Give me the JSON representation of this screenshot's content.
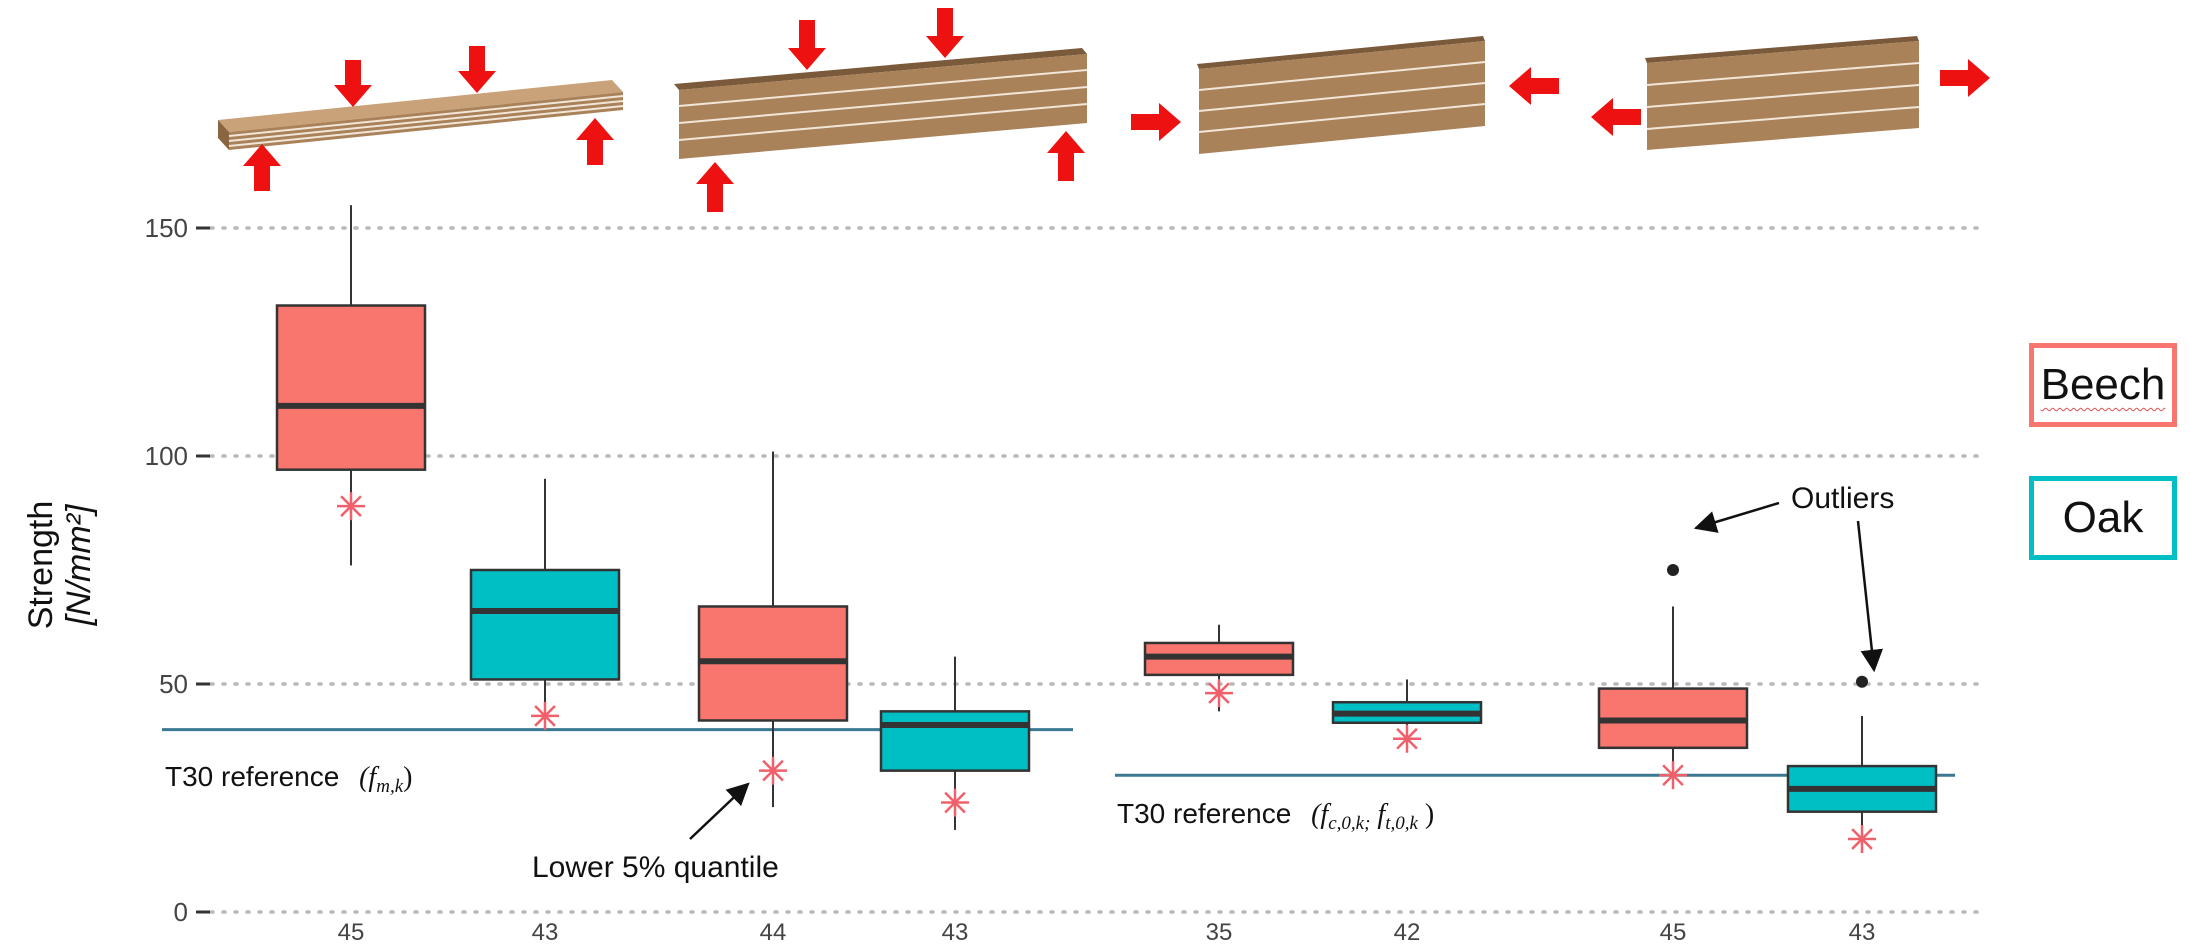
{
  "chart_data": {
    "type": "box",
    "ylabel": "Strength",
    "ylabel_unit": "[N/mm²]",
    "ylim": [
      0,
      160
    ],
    "yticks": [
      0,
      50,
      100,
      150
    ],
    "grid": "horizontal dotted",
    "groups": [
      {
        "name": "bending",
        "reference_label": "T30 reference",
        "reference_symbol": "(f",
        "reference_subscript": "m,k",
        "reference_symbol_close": ")",
        "reference_value": 40,
        "boxes": [
          {
            "series": "Beech",
            "n": "45",
            "min": 76,
            "q1": 97,
            "median": 111,
            "q3": 133,
            "max": 155,
            "lower_5pct": 89
          },
          {
            "series": "Oak",
            "n": "43",
            "min": 44,
            "q1": 51,
            "median": 66,
            "q3": 75,
            "max": 95,
            "lower_5pct": 43
          }
        ]
      },
      {
        "name": "bending-edgewise",
        "boxes": [
          {
            "series": "Beech",
            "n": "44",
            "min": 23,
            "q1": 42,
            "median": 55,
            "q3": 67,
            "max": 101,
            "lower_5pct": 31
          },
          {
            "series": "Oak",
            "n": "43",
            "min": 18,
            "q1": 31,
            "median": 41,
            "q3": 44,
            "max": 56,
            "lower_5pct": 24
          }
        ]
      },
      {
        "name": "compression",
        "reference_label": "T30 reference",
        "reference_symbol": "(f",
        "reference_subscript_1": "c,0,k;",
        "reference_symbol_2": " f",
        "reference_subscript_2": "t,0,k",
        "reference_symbol_close": " )",
        "reference_value": 30,
        "boxes": [
          {
            "series": "Beech",
            "n": "35",
            "min": 44,
            "q1": 52,
            "median": 56,
            "q3": 59,
            "max": 63,
            "lower_5pct": 48
          },
          {
            "series": "Oak",
            "n": "42",
            "min": 40,
            "q1": 41.5,
            "median": 43.5,
            "q3": 46,
            "max": 51,
            "lower_5pct": 38
          }
        ]
      },
      {
        "name": "tension",
        "boxes": [
          {
            "series": "Beech",
            "n": "45",
            "min": 29,
            "q1": 36,
            "median": 42,
            "q3": 49,
            "max": 67,
            "lower_5pct": 30,
            "outliers": [
              75
            ]
          },
          {
            "series": "Oak",
            "n": "43",
            "min": 19,
            "q1": 22,
            "median": 27,
            "q3": 32,
            "max": 43,
            "lower_5pct": 16,
            "outliers": [
              50.5
            ]
          }
        ]
      }
    ],
    "annotations": {
      "quantile": "Lower 5% quantile",
      "outliers": "Outliers"
    },
    "legend": [
      {
        "name": "Beech",
        "color": "#f8766d"
      },
      {
        "name": "Oak",
        "color": "#00bfc4"
      }
    ],
    "legend_position": "right"
  },
  "colors": {
    "beech": "#f8766d",
    "oak": "#00bfc4",
    "reference_line": "#3b7891",
    "asterisk": "#f0606a",
    "wood": "#a9825a",
    "arrow": "#ee1111"
  }
}
